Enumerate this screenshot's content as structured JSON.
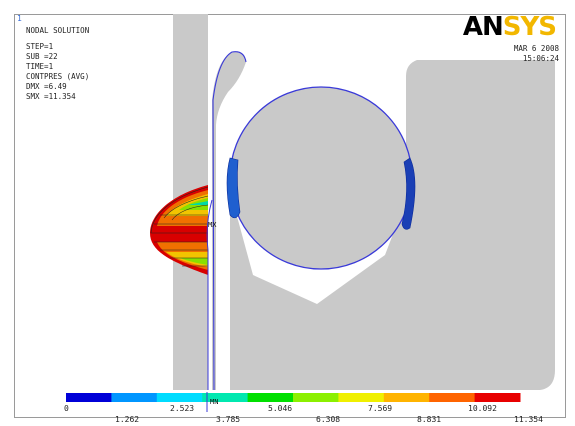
{
  "window": {
    "number": "1"
  },
  "logo": {
    "an": "AN",
    "sys": "SYS"
  },
  "info": {
    "lines": [
      "NODAL SOLUTION",
      "STEP=1",
      "SUB =22",
      "TIME=1",
      "CONTPRES (AVG)",
      "DMX =6.49",
      "SMX =11.354"
    ]
  },
  "date": {
    "date": "MAR  6 2008",
    "time": "15:06:24"
  },
  "markers": {
    "mx": "MX",
    "mn": "MN"
  },
  "legend": {
    "top_labels": [
      "0",
      "2.523",
      "5.046",
      "7.569",
      "10.092"
    ],
    "bottom_labels": [
      "1.262",
      "3.785",
      "6.308",
      "8.831",
      "11.354"
    ],
    "colors": [
      "#0000d8",
      "#0096ff",
      "#00dcff",
      "#00e8b0",
      "#00e000",
      "#8cf000",
      "#f0f000",
      "#ffb400",
      "#ff6400",
      "#e80000"
    ]
  }
}
